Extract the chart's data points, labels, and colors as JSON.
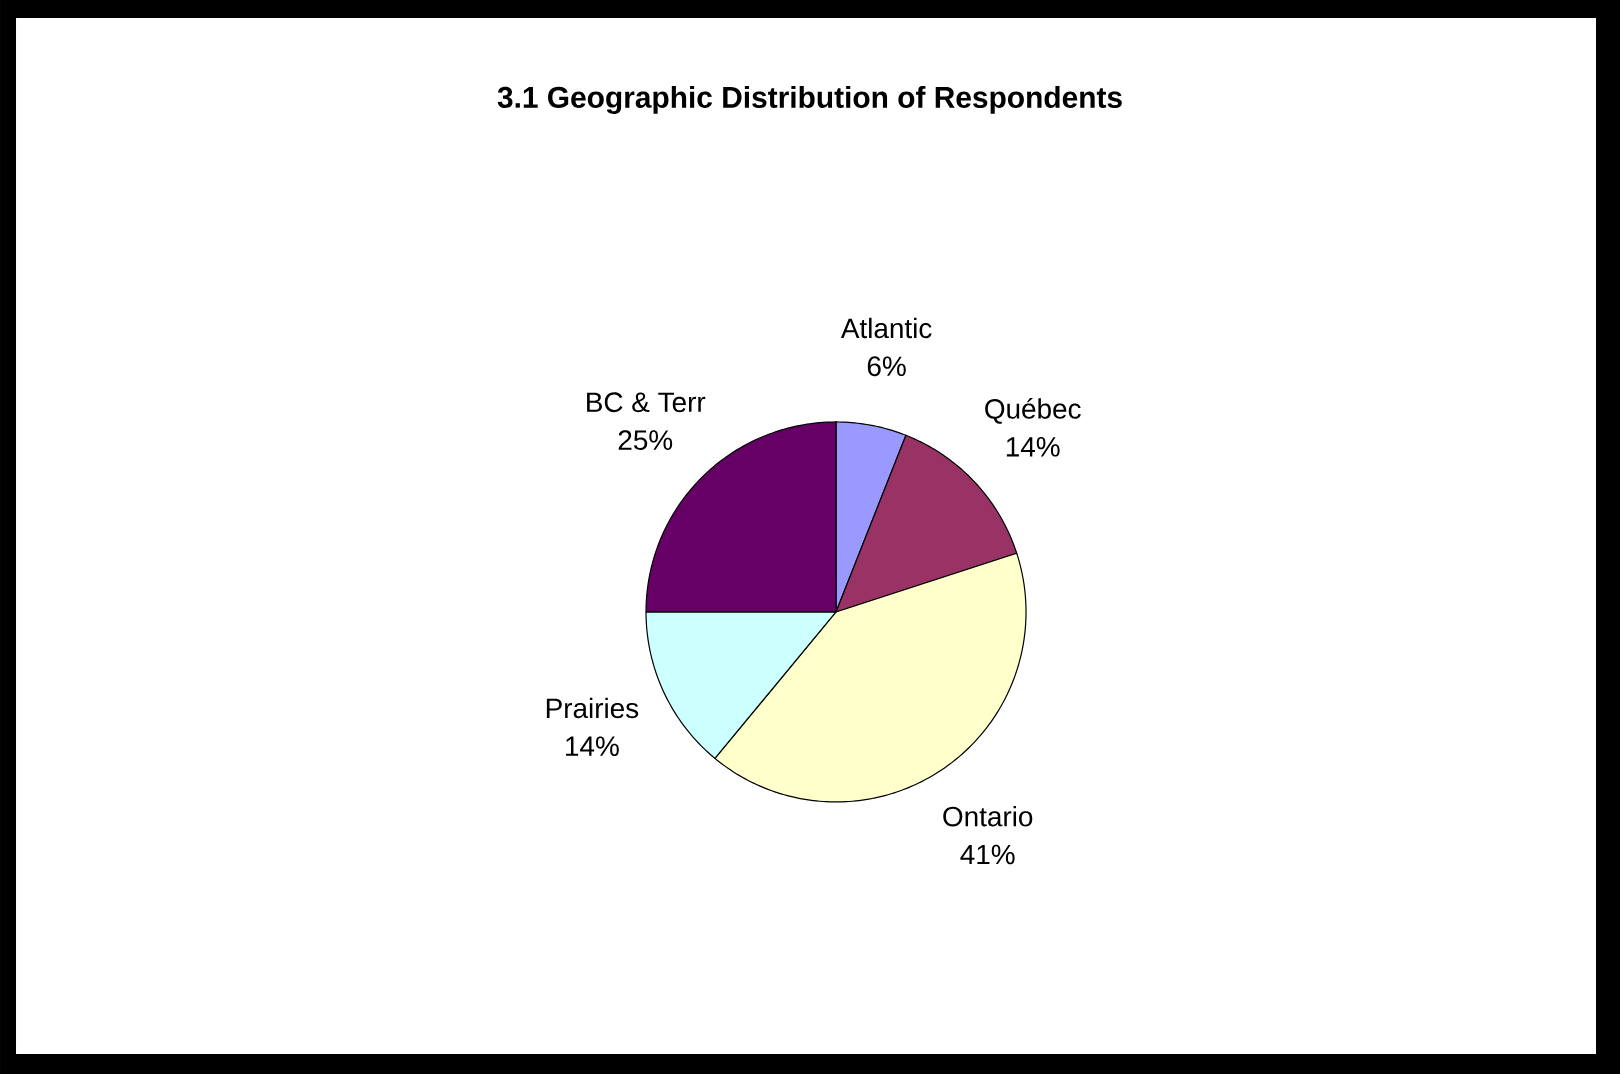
{
  "chart_data": {
    "type": "pie",
    "title": "3.1 Geographic Distribution of Respondents",
    "categories": [
      "Atlantic",
      "Québec",
      "Ontario",
      "Prairies",
      "BC & Terr"
    ],
    "values": [
      6,
      14,
      41,
      14,
      25
    ],
    "value_labels": [
      "6%",
      "14%",
      "41%",
      "14%",
      "25%"
    ],
    "colors": [
      "#9999ff",
      "#993366",
      "#ffffcc",
      "#ccffff",
      "#660066"
    ]
  }
}
